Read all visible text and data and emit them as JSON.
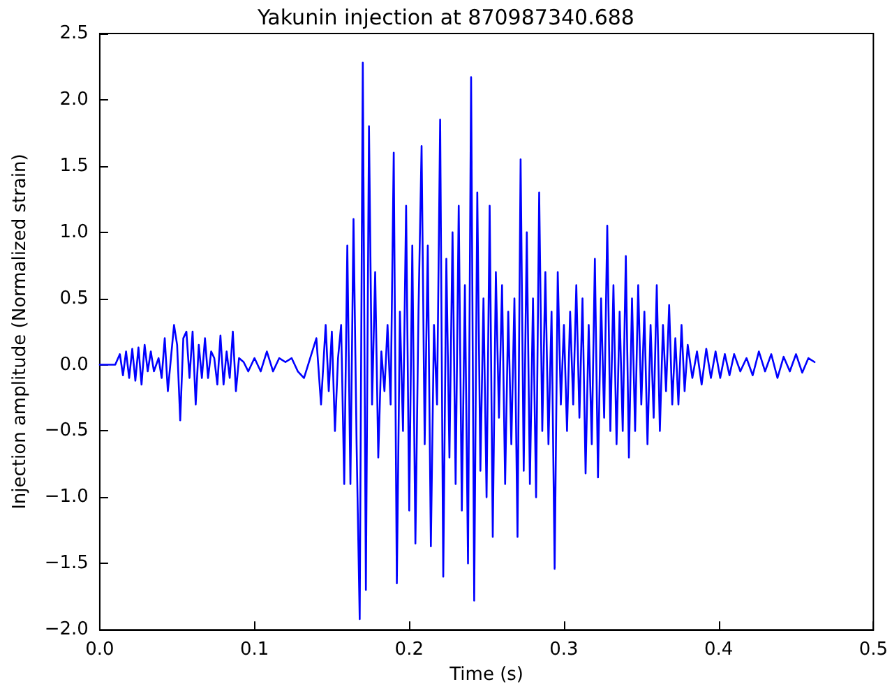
{
  "chart_data": {
    "type": "line",
    "title": "Yakunin injection at 870987340.688",
    "xlabel": "Time (s)",
    "ylabel": "Injection amplitude (Normalized strain)",
    "x": [
      0,
      0.01,
      0.013,
      0.015,
      0.017,
      0.019,
      0.021,
      0.023,
      0.025,
      0.027,
      0.029,
      0.031,
      0.033,
      0.035,
      0.038,
      0.04,
      0.042,
      0.044,
      0.046,
      0.048,
      0.05,
      0.052,
      0.054,
      0.056,
      0.058,
      0.06,
      0.062,
      0.064,
      0.066,
      0.068,
      0.07,
      0.072,
      0.074,
      0.076,
      0.078,
      0.08,
      0.082,
      0.084,
      0.086,
      0.088,
      0.09,
      0.093,
      0.096,
      0.1,
      0.104,
      0.108,
      0.112,
      0.116,
      0.12,
      0.124,
      0.128,
      0.132,
      0.136,
      0.14,
      0.143,
      0.146,
      0.148,
      0.15,
      0.152,
      0.154,
      0.156,
      0.158,
      0.16,
      0.162,
      0.164,
      0.166,
      0.168,
      0.17,
      0.172,
      0.174,
      0.176,
      0.178,
      0.18,
      0.182,
      0.184,
      0.186,
      0.188,
      0.19,
      0.192,
      0.194,
      0.196,
      0.198,
      0.2,
      0.202,
      0.204,
      0.206,
      0.208,
      0.21,
      0.212,
      0.214,
      0.216,
      0.218,
      0.22,
      0.222,
      0.224,
      0.226,
      0.228,
      0.23,
      0.232,
      0.234,
      0.236,
      0.238,
      0.24,
      0.242,
      0.244,
      0.246,
      0.248,
      0.25,
      0.252,
      0.254,
      0.256,
      0.258,
      0.26,
      0.262,
      0.264,
      0.266,
      0.268,
      0.27,
      0.272,
      0.274,
      0.276,
      0.278,
      0.28,
      0.282,
      0.284,
      0.286,
      0.288,
      0.29,
      0.292,
      0.294,
      0.296,
      0.298,
      0.3,
      0.302,
      0.304,
      0.306,
      0.308,
      0.31,
      0.312,
      0.314,
      0.316,
      0.318,
      0.32,
      0.322,
      0.324,
      0.326,
      0.328,
      0.33,
      0.332,
      0.334,
      0.336,
      0.338,
      0.34,
      0.342,
      0.344,
      0.346,
      0.348,
      0.35,
      0.352,
      0.354,
      0.356,
      0.358,
      0.36,
      0.362,
      0.364,
      0.366,
      0.368,
      0.37,
      0.372,
      0.374,
      0.376,
      0.378,
      0.38,
      0.383,
      0.386,
      0.389,
      0.392,
      0.395,
      0.398,
      0.401,
      0.404,
      0.407,
      0.41,
      0.414,
      0.418,
      0.422,
      0.426,
      0.43,
      0.434,
      0.438,
      0.442,
      0.446,
      0.45,
      0.454,
      0.458,
      0.462
    ],
    "series": [
      {
        "color": "#0000ff",
        "values": [
          0,
          0,
          0.08,
          -0.08,
          0.1,
          -0.1,
          0.12,
          -0.12,
          0.13,
          -0.15,
          0.15,
          -0.05,
          0.1,
          -0.05,
          0.05,
          -0.1,
          0.2,
          -0.2,
          0.05,
          0.3,
          0.15,
          -0.42,
          0.2,
          0.25,
          -0.1,
          0.25,
          -0.3,
          0.15,
          -0.1,
          0.2,
          -0.1,
          0.1,
          0.05,
          -0.15,
          0.22,
          -0.15,
          0.1,
          -0.1,
          0.25,
          -0.2,
          0.05,
          0.02,
          -0.05,
          0.05,
          -0.05,
          0.1,
          -0.05,
          0.05,
          0.02,
          0.05,
          -0.05,
          -0.1,
          0.05,
          0.2,
          -0.3,
          0.3,
          -0.2,
          0.25,
          -0.5,
          0.05,
          0.3,
          -0.9,
          0.9,
          -0.9,
          1.1,
          -0.6,
          -1.92,
          2.28,
          -1.7,
          1.8,
          -0.3,
          0.7,
          -0.7,
          0.1,
          -0.2,
          0.3,
          -0.3,
          1.6,
          -1.65,
          0.4,
          -0.5,
          1.2,
          -1.1,
          0.9,
          -1.35,
          0.4,
          1.65,
          -0.6,
          0.9,
          -1.37,
          0.3,
          -0.3,
          1.85,
          -1.6,
          0.8,
          -0.7,
          1.0,
          -0.9,
          1.2,
          -1.1,
          0.6,
          -1.5,
          2.17,
          -1.78,
          1.3,
          -0.8,
          0.5,
          -1.0,
          1.2,
          -1.3,
          0.7,
          -0.4,
          0.6,
          -0.9,
          0.4,
          -0.6,
          0.5,
          -1.3,
          1.55,
          -0.8,
          1.0,
          -0.9,
          0.5,
          -1.0,
          1.3,
          -0.5,
          0.7,
          -0.6,
          0.4,
          -1.54,
          0.7,
          -0.3,
          0.3,
          -0.5,
          0.4,
          -0.3,
          0.6,
          -0.4,
          0.5,
          -0.82,
          0.3,
          -0.6,
          0.8,
          -0.85,
          0.5,
          -0.4,
          1.05,
          -0.5,
          0.6,
          -0.6,
          0.4,
          -0.5,
          0.82,
          -0.7,
          0.5,
          -0.5,
          0.6,
          -0.3,
          0.4,
          -0.6,
          0.3,
          -0.4,
          0.6,
          -0.5,
          0.3,
          -0.2,
          0.45,
          -0.3,
          0.2,
          -0.3,
          0.3,
          -0.2,
          0.15,
          -0.1,
          0.1,
          -0.15,
          0.12,
          -0.1,
          0.1,
          -0.1,
          0.08,
          -0.08,
          0.08,
          -0.05,
          0.05,
          -0.08,
          0.1,
          -0.05,
          0.08,
          -0.1,
          0.06,
          -0.05,
          0.08,
          -0.06,
          0.05,
          0.02
        ]
      }
    ],
    "xlim": [
      0,
      0.5
    ],
    "xticks": [
      {
        "value": 0,
        "label": "0.0"
      },
      0.1,
      0.2,
      0.3,
      0.4,
      0.5
    ],
    "ylim": [
      -2,
      2.5
    ],
    "yticks": [
      {
        "value": -2,
        "label": "−2.0"
      },
      {
        "value": -1.5,
        "label": "−1.5"
      },
      {
        "value": -1,
        "label": "−1.0"
      },
      {
        "value": -0.5,
        "label": "−0.5"
      },
      {
        "value": 0,
        "label": "0.0"
      },
      0.5,
      {
        "value": 1,
        "label": "1.0"
      },
      1.5,
      {
        "value": 2,
        "label": "2.0"
      },
      2.5
    ],
    "grid": false,
    "marker": "none",
    "line_style": "solid"
  }
}
